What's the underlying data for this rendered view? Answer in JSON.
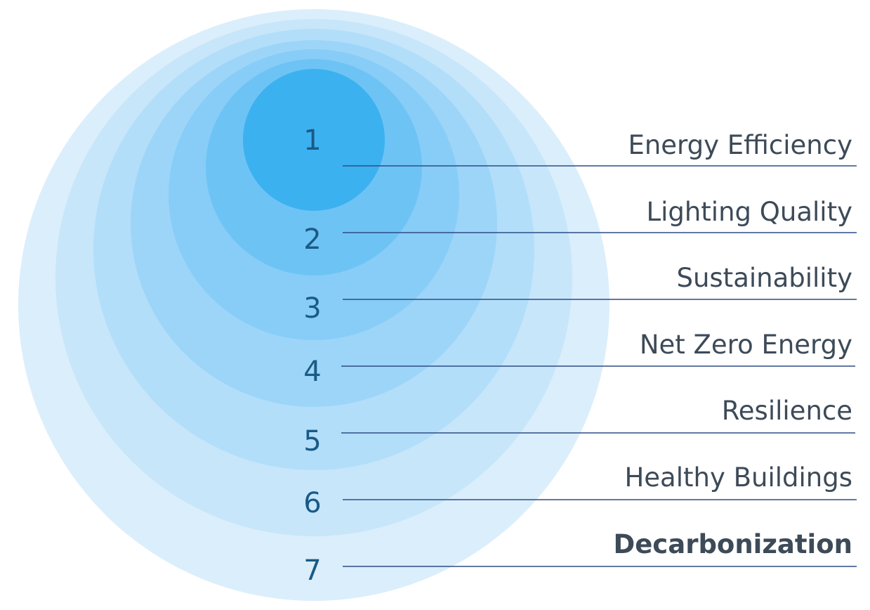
{
  "colors": {
    "rings": [
      "#dbeefb",
      "#c7e6fa",
      "#b2defa",
      "#9dd5f8",
      "#87cdf7",
      "#6ec3f5",
      "#3cb1ef"
    ],
    "line": "#2e4d86",
    "number_text": "#1a5a86",
    "label_text": "#3d4a58"
  },
  "levels": [
    {
      "number": "1",
      "label": "Energy Efficiency",
      "bold": false
    },
    {
      "number": "2",
      "label": "Lighting Quality",
      "bold": false
    },
    {
      "number": "3",
      "label": "Sustainability",
      "bold": false
    },
    {
      "number": "4",
      "label": "Net Zero Energy",
      "bold": false
    },
    {
      "number": "5",
      "label": "Resilience",
      "bold": false
    },
    {
      "number": "6",
      "label": "Healthy Buildings",
      "bold": false
    },
    {
      "number": "7",
      "label": "Decarbonization",
      "bold": true
    }
  ]
}
